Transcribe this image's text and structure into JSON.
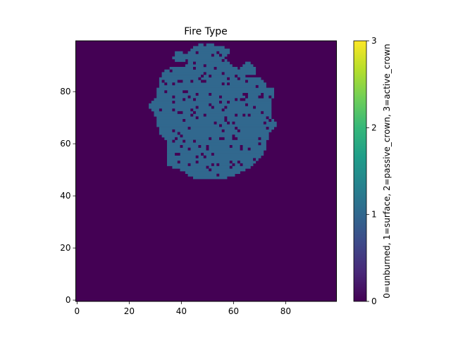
{
  "chart_data": {
    "type": "heatmap",
    "title": "Fire Type",
    "xlabel": "",
    "ylabel": "",
    "xlim": [
      0,
      99
    ],
    "ylim": [
      0,
      99
    ],
    "x_ticks": [
      0,
      20,
      40,
      60,
      80
    ],
    "y_ticks": [
      0,
      20,
      40,
      60,
      80
    ],
    "grid": false,
    "colormap": "viridis",
    "colorbar": {
      "label": "0=unburned, 1=surface, 2=passive_crown, 3=active_crown",
      "ticks": [
        0,
        1,
        2,
        3
      ],
      "range": [
        0,
        3
      ]
    },
    "colors": {
      "0": "#440154",
      "1": "#31688e",
      "2": "#21918c",
      "3": "#fde725"
    },
    "default_value": 0,
    "regions": [
      {
        "value": 1,
        "description": "burned area with surface fire, approximate row extents (y, x_start, x_end)",
        "row_spans": [
          [
            47,
            45,
            57
          ],
          [
            48,
            43,
            60
          ],
          [
            49,
            42,
            62
          ],
          [
            50,
            40,
            64
          ],
          [
            51,
            37,
            66
          ],
          [
            52,
            35,
            67
          ],
          [
            53,
            35,
            68
          ],
          [
            54,
            35,
            69
          ],
          [
            55,
            35,
            70
          ],
          [
            56,
            35,
            71
          ],
          [
            57,
            35,
            71
          ],
          [
            58,
            35,
            72
          ],
          [
            59,
            35,
            72
          ],
          [
            60,
            35,
            72
          ],
          [
            61,
            35,
            72
          ],
          [
            62,
            34,
            73
          ],
          [
            63,
            33,
            73
          ],
          [
            64,
            32,
            73
          ],
          [
            65,
            32,
            74
          ],
          [
            66,
            32,
            75
          ],
          [
            67,
            31,
            76
          ],
          [
            68,
            31,
            76
          ],
          [
            69,
            31,
            75
          ],
          [
            70,
            31,
            74
          ],
          [
            71,
            30,
            74
          ],
          [
            72,
            30,
            74
          ],
          [
            73,
            29,
            74
          ],
          [
            74,
            28,
            74
          ],
          [
            75,
            28,
            74
          ],
          [
            76,
            29,
            74
          ],
          [
            77,
            30,
            74
          ],
          [
            78,
            31,
            75
          ],
          [
            79,
            31,
            75
          ],
          [
            80,
            31,
            75
          ],
          [
            81,
            31,
            75
          ],
          [
            82,
            32,
            72
          ],
          [
            83,
            32,
            72
          ],
          [
            84,
            32,
            71
          ],
          [
            85,
            32,
            70
          ],
          [
            86,
            33,
            64
          ],
          [
            87,
            33,
            62
          ],
          [
            88,
            34,
            62
          ],
          [
            89,
            36,
            61
          ],
          [
            90,
            42,
            59
          ],
          [
            91,
            43,
            58
          ],
          [
            92,
            43,
            57
          ],
          [
            93,
            42,
            56
          ],
          [
            94,
            42,
            57
          ],
          [
            95,
            43,
            58
          ],
          [
            96,
            44,
            58
          ],
          [
            97,
            45,
            56
          ],
          [
            98,
            47,
            52
          ]
        ]
      },
      {
        "value": 1,
        "description": "small burned island upper right",
        "row_spans": [
          [
            87,
            63,
            68
          ],
          [
            88,
            63,
            68
          ],
          [
            89,
            63,
            68
          ],
          [
            90,
            64,
            67
          ],
          [
            91,
            65,
            66
          ]
        ]
      },
      {
        "value": 1,
        "description": "burned island upper left",
        "row_spans": [
          [
            92,
            38,
            41
          ],
          [
            93,
            37,
            41
          ],
          [
            94,
            38,
            41
          ],
          [
            95,
            38,
            40
          ]
        ]
      }
    ]
  }
}
